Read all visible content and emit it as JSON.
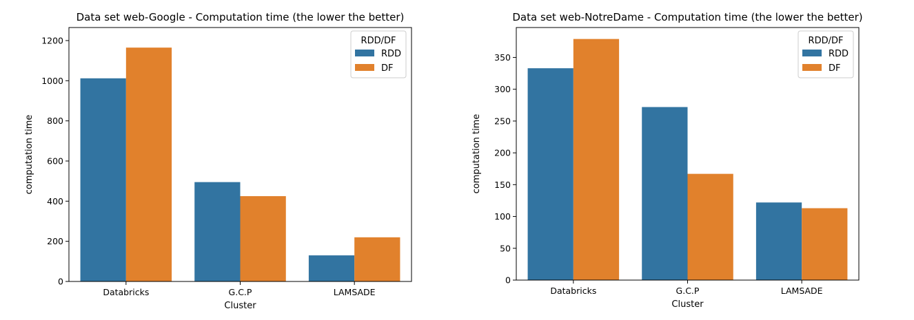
{
  "chart_data": [
    {
      "type": "bar",
      "title": "Data set web-Google - Computation time (the lower the better)",
      "xlabel": "Cluster",
      "ylabel": "computation time",
      "categories": [
        "Databricks",
        "G.C.P",
        "LAMSADE"
      ],
      "series": [
        {
          "name": "RDD",
          "values": [
            1012,
            495,
            130
          ]
        },
        {
          "name": "DF",
          "values": [
            1165,
            425,
            220
          ]
        }
      ],
      "ylim": [
        0,
        1265
      ],
      "yticks": [
        0,
        200,
        400,
        600,
        800,
        1000,
        1200
      ],
      "legend": {
        "title": "RDD/DF",
        "placement": "top-right"
      },
      "colors": {
        "RDD": "#3274a1",
        "DF": "#e1812c"
      },
      "grid": false
    },
    {
      "type": "bar",
      "title": "Data set web-NotreDame - Computation time (the lower the better)",
      "xlabel": "Cluster",
      "ylabel": "computation time",
      "categories": [
        "Databricks",
        "G.C.P",
        "LAMSADE"
      ],
      "series": [
        {
          "name": "RDD",
          "values": [
            333,
            272,
            122
          ]
        },
        {
          "name": "DF",
          "values": [
            379,
            167,
            113
          ]
        }
      ],
      "ylim": [
        0,
        397
      ],
      "yticks": [
        0,
        50,
        100,
        150,
        200,
        250,
        300,
        350
      ],
      "legend": {
        "title": "RDD/DF",
        "placement": "top-right"
      },
      "colors": {
        "RDD": "#3274a1",
        "DF": "#e1812c"
      },
      "grid": false
    }
  ]
}
